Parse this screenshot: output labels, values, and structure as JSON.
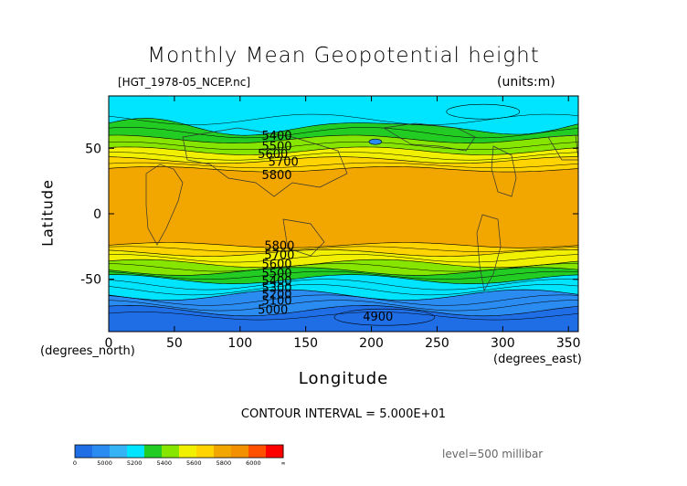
{
  "chart_data": {
    "type": "heatmap",
    "title": "Monthly Mean Geopotential height",
    "file_label": "[HGT_1978-05_NCEP.nc]",
    "units_label": "(units:m)",
    "xlabel": "Longitude",
    "ylabel": "Latitude",
    "x_units": "(degrees_east)",
    "y_units": "(degrees_north)",
    "xlim": [
      0,
      357.5
    ],
    "ylim": [
      -90,
      90
    ],
    "x_ticks": [
      0,
      50,
      100,
      150,
      200,
      250,
      300,
      350
    ],
    "y_ticks": [
      50,
      0,
      -50
    ],
    "contour_interval_text": "CONTOUR INTERVAL = 5.000E+01",
    "level_text": "level=500 millibar",
    "colorbar": {
      "tick_labels": [
        "0",
        "5000",
        "5200",
        "5400",
        "5600",
        "5800",
        "6000",
        "∞"
      ],
      "colors": [
        "#1f6ee6",
        "#2a8bf0",
        "#35b4f5",
        "#00e5ff",
        "#22cc22",
        "#86e600",
        "#f0f000",
        "#ffd400",
        "#f2a600",
        "#f29000",
        "#ff5000",
        "#ff0000"
      ]
    },
    "bands": [
      {
        "range": "5800+",
        "color": "#f2a600"
      },
      {
        "range": "5700-5800",
        "color": "#ffd400"
      },
      {
        "range": "5600-5700",
        "color": "#f0f000"
      },
      {
        "range": "5500-5600",
        "color": "#86e600"
      },
      {
        "range": "5400-5500",
        "color": "#22cc22"
      },
      {
        "range": "5200-5400",
        "color": "#00e5ff"
      },
      {
        "range": "5000-5200",
        "color": "#2a8bf0"
      },
      {
        "range": "<5000",
        "color": "#1f6ee6"
      }
    ],
    "contour_labels": [
      {
        "text": "5400",
        "lon": 128,
        "lat": 60
      },
      {
        "text": "5500",
        "lon": 128,
        "lat": 52
      },
      {
        "text": "5600",
        "lon": 125,
        "lat": 46
      },
      {
        "text": "5700",
        "lon": 133,
        "lat": 40
      },
      {
        "text": "5800",
        "lon": 128,
        "lat": 30
      },
      {
        "text": "5800",
        "lon": 130,
        "lat": -24
      },
      {
        "text": "5700",
        "lon": 130,
        "lat": -31
      },
      {
        "text": "5600",
        "lon": 128,
        "lat": -38
      },
      {
        "text": "5500",
        "lon": 128,
        "lat": -45
      },
      {
        "text": "5400",
        "lon": 128,
        "lat": -51
      },
      {
        "text": "5300",
        "lon": 128,
        "lat": -56
      },
      {
        "text": "5200",
        "lon": 128,
        "lat": -61
      },
      {
        "text": "5100",
        "lon": 128,
        "lat": -66
      },
      {
        "text": "5000",
        "lon": 125,
        "lat": -73
      },
      {
        "text": "4900",
        "lon": 205,
        "lat": -78
      }
    ]
  }
}
